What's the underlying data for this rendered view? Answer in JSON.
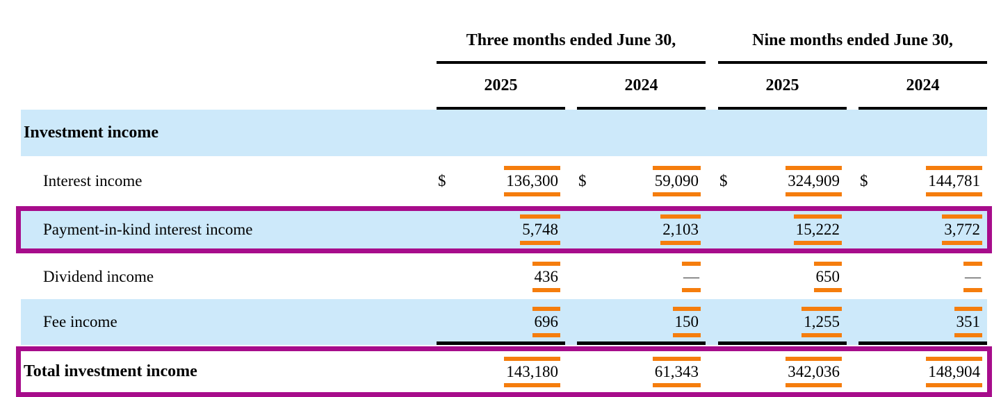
{
  "table": {
    "col_groups": [
      {
        "label": "Three months ended June 30,"
      },
      {
        "label": "Nine months ended June 30,"
      }
    ],
    "years": [
      "2025",
      "2024",
      "2025",
      "2024"
    ],
    "dollar_sign": "$",
    "section_header": "Investment income",
    "rows": [
      {
        "label": "Interest income",
        "values": [
          "136,300",
          "59,090",
          "324,909",
          "144,781"
        ],
        "has_dollar": true
      },
      {
        "label": "Payment-in-kind interest income",
        "values": [
          "5,748",
          "2,103",
          "15,222",
          "3,772"
        ],
        "highlighted": true
      },
      {
        "label": "Dividend income",
        "values": [
          "436",
          "—",
          "650",
          "—"
        ]
      },
      {
        "label": "Fee income",
        "values": [
          "696",
          "150",
          "1,255",
          "351"
        ]
      },
      {
        "label": "Total investment income",
        "values": [
          "143,180",
          "61,343",
          "342,036",
          "148,904"
        ],
        "highlighted": true,
        "is_total": true
      }
    ],
    "colors": {
      "row_highlight": "#CDE9FA",
      "annotation_orange": "#F57D0D",
      "annotation_magenta": "#A70C8B"
    }
  }
}
